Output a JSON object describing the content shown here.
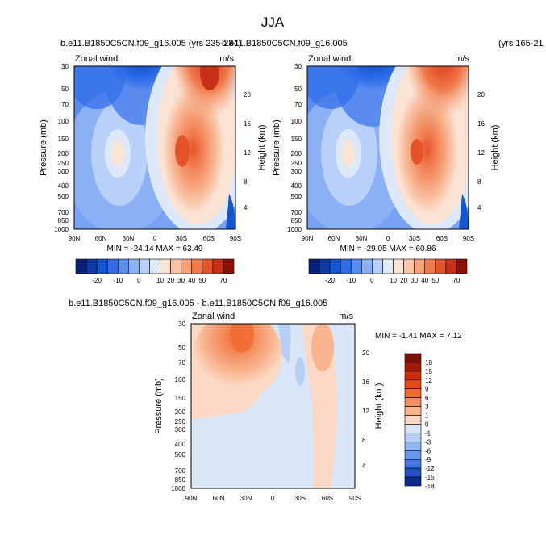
{
  "figure_title": "JJA",
  "chart_data": [
    {
      "type": "heatmap",
      "panel": "left",
      "title": "b.e11.B1850C5CN.f09_g16.005 (yrs 235-284)",
      "subtitle_left": "Zonal wind",
      "units": "m/s",
      "xlabel": "",
      "ylabel": "Pressure (mb)",
      "ylabel_right": "Height (km)",
      "x_ticks": [
        "90N",
        "60N",
        "30N",
        "0",
        "30S",
        "60S",
        "90S"
      ],
      "y_ticks": [
        30,
        50,
        70,
        100,
        150,
        200,
        250,
        300,
        400,
        500,
        700,
        850,
        1000
      ],
      "y_ticks_right": [
        4,
        8,
        12,
        16,
        20
      ],
      "stats": "MIN = -24.14  MAX =  63.49",
      "min": -24.14,
      "max": 63.49,
      "colorbar_labels": [
        "-20",
        "-10",
        "0",
        "10",
        "20",
        "30",
        "40",
        "50",
        "70"
      ]
    },
    {
      "type": "heatmap",
      "panel": "right",
      "title": "b.e11.B1850C5CN.f09_g16.005",
      "title_right": "(yrs 165-21",
      "subtitle_left": "Zonal wind",
      "units": "m/s",
      "xlabel": "",
      "ylabel": "Pressure (mb)",
      "ylabel_right": "Height (km)",
      "x_ticks": [
        "90N",
        "60N",
        "30N",
        "0",
        "30S",
        "60S",
        "90S"
      ],
      "y_ticks": [
        30,
        50,
        70,
        100,
        150,
        200,
        250,
        300,
        400,
        500,
        700,
        850,
        1000
      ],
      "y_ticks_right": [
        4,
        8,
        12,
        16,
        20
      ],
      "stats": "MIN = -29.05  MAX =  60.86",
      "min": -29.05,
      "max": 60.86,
      "colorbar_labels": [
        "-20",
        "-10",
        "0",
        "10",
        "20",
        "30",
        "40",
        "50",
        "70"
      ]
    },
    {
      "type": "heatmap",
      "panel": "difference",
      "title": "b.e11.B1850C5CN.f09_g16.005 - b.e11.B1850C5CN.f09_g16.005",
      "subtitle_left": "Zonal wind",
      "units": "m/s",
      "xlabel": "",
      "ylabel": "Pressure (mb)",
      "ylabel_right": "Height (km)",
      "x_ticks": [
        "90N",
        "60N",
        "30N",
        "0",
        "30S",
        "60S",
        "90S"
      ],
      "y_ticks": [
        30,
        50,
        70,
        100,
        150,
        200,
        250,
        300,
        400,
        500,
        700,
        850,
        1000
      ],
      "y_ticks_right": [
        4,
        8,
        12,
        16,
        20
      ],
      "stats": "MIN = -1.41  MAX =  7.12",
      "min": -1.41,
      "max": 7.12,
      "colorbar_labels": [
        "18",
        "15",
        "12",
        "9",
        "6",
        "3",
        "1",
        "0",
        "-1",
        "-3",
        "-6",
        "-9",
        "-12",
        "-15",
        "-18"
      ]
    }
  ],
  "colors": {
    "main_palette": [
      "#08217a",
      "#0c3aa8",
      "#1356d2",
      "#2f6ce8",
      "#5a8cf0",
      "#8cb0f5",
      "#b9d0f8",
      "#dde9fb",
      "#fbe3d4",
      "#f9c4a6",
      "#f6a179",
      "#f07a4d",
      "#e5532a",
      "#c83018",
      "#8c1006"
    ],
    "diff_palette": [
      "#7a1106",
      "#a41a0a",
      "#c8300f",
      "#e34a18",
      "#f06a33",
      "#f48d5d",
      "#f8b48f",
      "#fbd9c4",
      "#d8e6f7",
      "#b7cff4",
      "#92b6f0",
      "#6a98ea",
      "#4375e0",
      "#2450c4",
      "#0e2b8c"
    ]
  }
}
